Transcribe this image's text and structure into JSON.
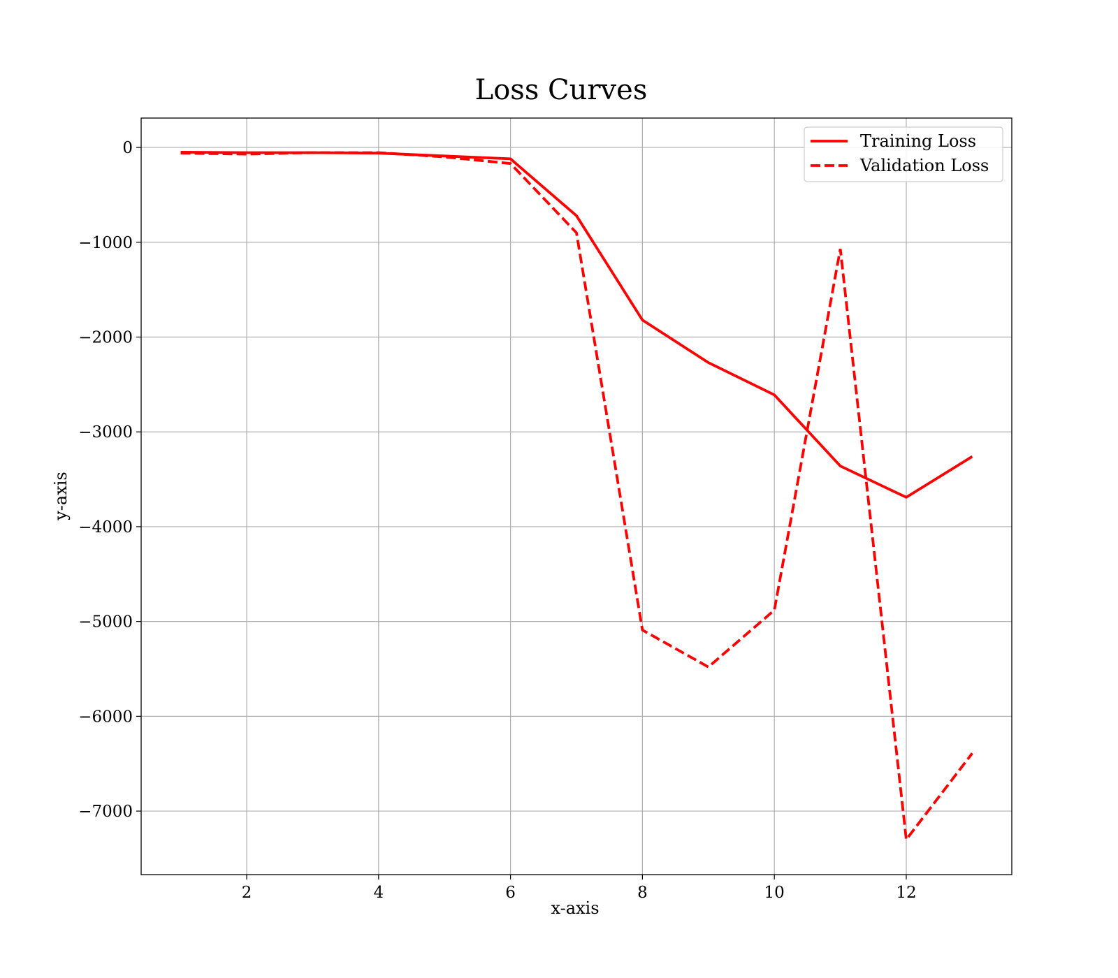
{
  "chart_data": {
    "type": "line",
    "title": "Loss Curves",
    "xlabel": "x-axis",
    "ylabel": "y-axis",
    "x": [
      1,
      2,
      3,
      4,
      5,
      6,
      7,
      8,
      9,
      10,
      11,
      12,
      13
    ],
    "series": [
      {
        "name": "Training Loss",
        "color": "#ff0000",
        "style": "solid",
        "values": [
          -50,
          -55,
          -55,
          -60,
          -90,
          -120,
          -720,
          -1820,
          -2270,
          -2610,
          -3360,
          -3690,
          -3260
        ]
      },
      {
        "name": "Validation Loss",
        "color": "#ff0000",
        "style": "dashed",
        "values": [
          -60,
          -70,
          -55,
          -55,
          -100,
          -170,
          -900,
          -5090,
          -5480,
          -4880,
          -1070,
          -7300,
          -6390
        ]
      }
    ],
    "xlim": [
      0.4,
      13.6
    ],
    "ylim": [
      -7670,
      310
    ],
    "xticks": [
      2,
      4,
      6,
      8,
      10,
      12
    ],
    "yticks": [
      0,
      -1000,
      -2000,
      -3000,
      -4000,
      -5000,
      -6000,
      -7000
    ],
    "xtick_labels": [
      "2",
      "4",
      "6",
      "8",
      "10",
      "12"
    ],
    "ytick_labels": [
      "0",
      "−1000",
      "−2000",
      "−3000",
      "−4000",
      "−5000",
      "−6000",
      "−7000"
    ],
    "grid": true,
    "legend_position": "upper right"
  }
}
